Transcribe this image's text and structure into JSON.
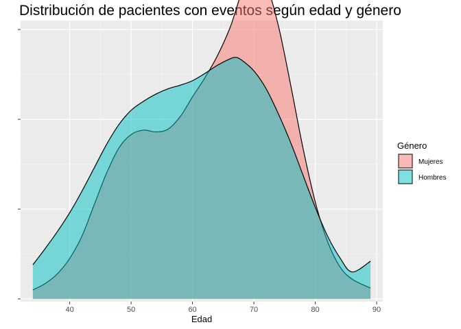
{
  "chart_data": {
    "type": "area",
    "subtype": "density",
    "title": "Distribución de pacientes con eventos según edad y género",
    "xlabel": "Edad",
    "ylabel": "",
    "xlim": [
      32,
      91
    ],
    "ylim": [
      -0.0003,
      0.031
    ],
    "x_ticks": [
      40,
      50,
      60,
      70,
      80,
      90
    ],
    "y_ticks": [
      0,
      0.01,
      0.02,
      0.03
    ],
    "y_tick_labels_shown": false,
    "grid": true,
    "legend": {
      "title": "Género",
      "position": "right"
    },
    "series": [
      {
        "name": "Mujeres",
        "fill": "#F8766D",
        "x": [
          34,
          36,
          38,
          40,
          42,
          44,
          46,
          48,
          50,
          52,
          54,
          56,
          58,
          60,
          62,
          64,
          66,
          67,
          68,
          70,
          72,
          74,
          76,
          78,
          80,
          82,
          84,
          86,
          89
        ],
        "y": [
          0.001,
          0.0017,
          0.0028,
          0.0045,
          0.007,
          0.0105,
          0.014,
          0.0168,
          0.0183,
          0.0188,
          0.0186,
          0.0189,
          0.0203,
          0.0225,
          0.0246,
          0.027,
          0.03,
          0.032,
          0.034,
          0.0361,
          0.035,
          0.0304,
          0.0238,
          0.0168,
          0.0108,
          0.0064,
          0.0036,
          0.0022,
          0.0012
        ]
      },
      {
        "name": "Hombres",
        "fill": "#00BFC4",
        "x": [
          34,
          36,
          38,
          40,
          42,
          44,
          46,
          48,
          50,
          52,
          54,
          56,
          58,
          60,
          62,
          64,
          66,
          67,
          68,
          70,
          72,
          74,
          76,
          78,
          80,
          82,
          84,
          86,
          89
        ],
        "y": [
          0.0038,
          0.0056,
          0.0075,
          0.0096,
          0.012,
          0.0146,
          0.0172,
          0.0194,
          0.021,
          0.022,
          0.0228,
          0.0234,
          0.0238,
          0.0243,
          0.0251,
          0.026,
          0.0267,
          0.0269,
          0.0266,
          0.0254,
          0.0234,
          0.0206,
          0.0174,
          0.0138,
          0.0102,
          0.007,
          0.0046,
          0.003,
          0.0042
        ]
      }
    ]
  }
}
